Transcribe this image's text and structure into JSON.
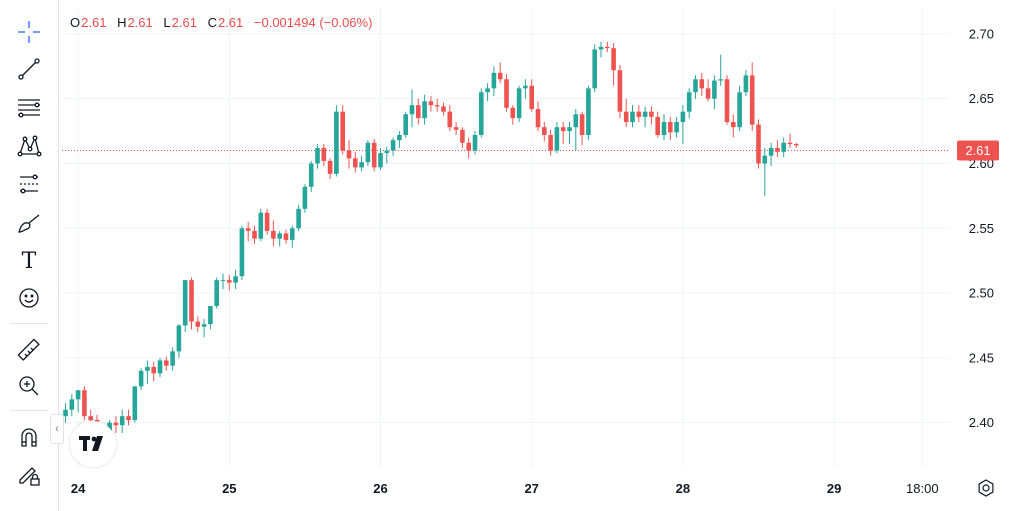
{
  "legend": {
    "open_label": "O",
    "open": "2.61",
    "high_label": "H",
    "high": "2.61",
    "low_label": "L",
    "low": "2.61",
    "close_label": "C",
    "close": "2.61",
    "change": "−0.001494 (−0.06%)"
  },
  "toolbar": {
    "tools": [
      {
        "name": "crosshair-icon"
      },
      {
        "name": "trend-line-icon"
      },
      {
        "name": "fib-retracement-icon"
      },
      {
        "name": "pattern-icon"
      },
      {
        "name": "prediction-icon"
      },
      {
        "name": "brush-icon"
      },
      {
        "name": "text-icon",
        "glyph": "T"
      },
      {
        "name": "emoji-icon"
      },
      {
        "name": "ruler-icon"
      },
      {
        "name": "zoom-in-icon"
      },
      {
        "name": "magnet-icon"
      },
      {
        "name": "lock-drawings-icon"
      }
    ],
    "collapse_glyph": "‹"
  },
  "logo_text": "TV",
  "colors": {
    "up": "#26a69a",
    "down": "#ef5350",
    "price_line": "#ef5350",
    "grid": "#f0f3fa",
    "axis_text": "#131722"
  },
  "chart_data": {
    "type": "candlestick",
    "title": "",
    "ylim": [
      2.365,
      2.72
    ],
    "y_ticks": [
      2.4,
      2.45,
      2.5,
      2.55,
      2.6,
      2.65,
      2.7
    ],
    "x_ticks": [
      "24",
      "25",
      "26",
      "27",
      "28",
      "29",
      "18:00"
    ],
    "x_tick_index": [
      2,
      26,
      50,
      74,
      98,
      122,
      136
    ],
    "last_price": 2.61,
    "last_price_label": "2.61",
    "candles": [
      [
        2.405,
        2.415,
        2.4,
        2.41
      ],
      [
        2.41,
        2.422,
        2.405,
        2.418
      ],
      [
        2.418,
        2.425,
        2.408,
        2.425
      ],
      [
        2.425,
        2.428,
        2.402,
        2.405
      ],
      [
        2.405,
        2.41,
        2.398,
        2.402
      ],
      [
        2.402,
        2.406,
        2.393,
        2.395
      ],
      [
        2.395,
        2.398,
        2.385,
        2.388
      ],
      [
        2.388,
        2.402,
        2.385,
        2.4
      ],
      [
        2.4,
        2.405,
        2.392,
        2.398
      ],
      [
        2.398,
        2.41,
        2.392,
        2.405
      ],
      [
        2.405,
        2.41,
        2.398,
        2.402
      ],
      [
        2.402,
        2.428,
        2.4,
        2.428
      ],
      [
        2.428,
        2.442,
        2.425,
        2.44
      ],
      [
        2.44,
        2.448,
        2.43,
        2.443
      ],
      [
        2.443,
        2.447,
        2.432,
        2.438
      ],
      [
        2.438,
        2.45,
        2.435,
        2.448
      ],
      [
        2.448,
        2.451,
        2.44,
        2.444
      ],
      [
        2.444,
        2.458,
        2.44,
        2.455
      ],
      [
        2.455,
        2.476,
        2.45,
        2.475
      ],
      [
        2.475,
        2.51,
        2.47,
        2.51
      ],
      [
        2.51,
        2.512,
        2.472,
        2.478
      ],
      [
        2.478,
        2.482,
        2.47,
        2.474
      ],
      [
        2.474,
        2.48,
        2.466,
        2.476
      ],
      [
        2.476,
        2.49,
        2.472,
        2.49
      ],
      [
        2.49,
        2.512,
        2.488,
        2.51
      ],
      [
        2.51,
        2.515,
        2.503,
        2.51
      ],
      [
        2.51,
        2.514,
        2.502,
        2.508
      ],
      [
        2.508,
        2.518,
        2.503,
        2.513
      ],
      [
        2.513,
        2.552,
        2.51,
        2.55
      ],
      [
        2.55,
        2.555,
        2.54,
        2.548
      ],
      [
        2.548,
        2.552,
        2.538,
        2.542
      ],
      [
        2.542,
        2.565,
        2.54,
        2.562
      ],
      [
        2.562,
        2.565,
        2.545,
        2.548
      ],
      [
        2.548,
        2.556,
        2.536,
        2.542
      ],
      [
        2.542,
        2.548,
        2.536,
        2.546
      ],
      [
        2.546,
        2.549,
        2.538,
        2.541
      ],
      [
        2.541,
        2.552,
        2.535,
        2.55
      ],
      [
        2.55,
        2.568,
        2.548,
        2.565
      ],
      [
        2.565,
        2.584,
        2.562,
        2.582
      ],
      [
        2.582,
        2.602,
        2.578,
        2.6
      ],
      [
        2.6,
        2.615,
        2.596,
        2.612
      ],
      [
        2.612,
        2.615,
        2.598,
        2.602
      ],
      [
        2.602,
        2.604,
        2.588,
        2.592
      ],
      [
        2.592,
        2.645,
        2.59,
        2.64
      ],
      [
        2.64,
        2.645,
        2.607,
        2.61
      ],
      [
        2.61,
        2.618,
        2.596,
        2.604
      ],
      [
        2.604,
        2.609,
        2.593,
        2.597
      ],
      [
        2.597,
        2.606,
        2.594,
        2.601
      ],
      [
        2.601,
        2.618,
        2.598,
        2.616
      ],
      [
        2.616,
        2.619,
        2.594,
        2.597
      ],
      [
        2.597,
        2.612,
        2.595,
        2.608
      ],
      [
        2.608,
        2.613,
        2.6,
        2.61
      ],
      [
        2.61,
        2.62,
        2.606,
        2.618
      ],
      [
        2.618,
        2.625,
        2.612,
        2.622
      ],
      [
        2.622,
        2.64,
        2.62,
        2.638
      ],
      [
        2.638,
        2.657,
        2.628,
        2.645
      ],
      [
        2.645,
        2.65,
        2.63,
        2.635
      ],
      [
        2.635,
        2.653,
        2.63,
        2.648
      ],
      [
        2.648,
        2.652,
        2.64,
        2.645
      ],
      [
        2.645,
        2.65,
        2.64,
        2.644
      ],
      [
        2.644,
        2.647,
        2.637,
        2.64
      ],
      [
        2.64,
        2.645,
        2.625,
        2.628
      ],
      [
        2.628,
        2.632,
        2.622,
        2.626
      ],
      [
        2.626,
        2.628,
        2.612,
        2.616
      ],
      [
        2.616,
        2.62,
        2.604,
        2.61
      ],
      [
        2.61,
        2.625,
        2.607,
        2.622
      ],
      [
        2.622,
        2.658,
        2.62,
        2.655
      ],
      [
        2.655,
        2.662,
        2.648,
        2.658
      ],
      [
        2.658,
        2.675,
        2.652,
        2.67
      ],
      [
        2.67,
        2.678,
        2.662,
        2.665
      ],
      [
        2.665,
        2.669,
        2.64,
        2.643
      ],
      [
        2.643,
        2.645,
        2.63,
        2.635
      ],
      [
        2.635,
        2.66,
        2.632,
        2.658
      ],
      [
        2.658,
        2.665,
        2.65,
        2.66
      ],
      [
        2.66,
        2.665,
        2.64,
        2.642
      ],
      [
        2.642,
        2.648,
        2.625,
        2.628
      ],
      [
        2.628,
        2.632,
        2.617,
        2.622
      ],
      [
        2.622,
        2.626,
        2.606,
        2.61
      ],
      [
        2.61,
        2.632,
        2.608,
        2.628
      ],
      [
        2.628,
        2.632,
        2.615,
        2.625
      ],
      [
        2.625,
        2.632,
        2.615,
        2.628
      ],
      [
        2.628,
        2.642,
        2.61,
        2.638
      ],
      [
        2.638,
        2.64,
        2.614,
        2.622
      ],
      [
        2.622,
        2.66,
        2.618,
        2.658
      ],
      [
        2.658,
        2.692,
        2.655,
        2.688
      ],
      [
        2.688,
        2.694,
        2.682,
        2.69
      ],
      [
        2.69,
        2.694,
        2.686,
        2.689
      ],
      [
        2.689,
        2.693,
        2.66,
        2.672
      ],
      [
        2.672,
        2.676,
        2.635,
        2.64
      ],
      [
        2.64,
        2.65,
        2.628,
        2.632
      ],
      [
        2.632,
        2.645,
        2.628,
        2.64
      ],
      [
        2.64,
        2.645,
        2.632,
        2.636
      ],
      [
        2.636,
        2.644,
        2.628,
        2.64
      ],
      [
        2.64,
        2.644,
        2.63,
        2.636
      ],
      [
        2.636,
        2.64,
        2.62,
        2.622
      ],
      [
        2.622,
        2.638,
        2.618,
        2.632
      ],
      [
        2.632,
        2.636,
        2.618,
        2.624
      ],
      [
        2.624,
        2.636,
        2.62,
        2.632
      ],
      [
        2.632,
        2.645,
        2.615,
        2.64
      ],
      [
        2.64,
        2.658,
        2.635,
        2.655
      ],
      [
        2.655,
        2.668,
        2.65,
        2.665
      ],
      [
        2.665,
        2.67,
        2.652,
        2.658
      ],
      [
        2.658,
        2.665,
        2.648,
        2.65
      ],
      [
        2.65,
        2.668,
        2.642,
        2.664
      ],
      [
        2.664,
        2.684,
        2.66,
        2.665
      ],
      [
        2.665,
        2.668,
        2.63,
        2.632
      ],
      [
        2.632,
        2.638,
        2.62,
        2.628
      ],
      [
        2.628,
        2.66,
        2.625,
        2.655
      ],
      [
        2.655,
        2.672,
        2.652,
        2.668
      ],
      [
        2.668,
        2.678,
        2.625,
        2.63
      ],
      [
        2.63,
        2.634,
        2.596,
        2.6
      ],
      [
        2.6,
        2.612,
        2.575,
        2.606
      ],
      [
        2.606,
        2.616,
        2.598,
        2.612
      ],
      [
        2.612,
        2.618,
        2.605,
        2.609
      ],
      [
        2.609,
        2.62,
        2.605,
        2.616
      ],
      [
        2.616,
        2.623,
        2.612,
        2.615
      ],
      [
        2.615,
        2.616,
        2.612,
        2.614
      ]
    ]
  }
}
